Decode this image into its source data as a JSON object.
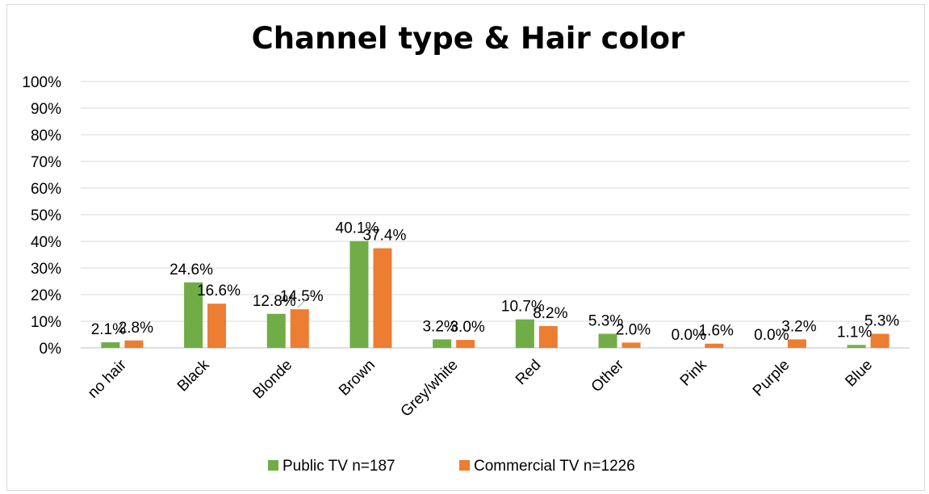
{
  "chart_data": {
    "type": "bar",
    "title": "Channel type & Hair color",
    "xlabel": "",
    "ylabel": "",
    "ylim": [
      0,
      100
    ],
    "yticks": [
      "0%",
      "10%",
      "20%",
      "30%",
      "40%",
      "50%",
      "60%",
      "70%",
      "80%",
      "90%",
      "100%"
    ],
    "categories": [
      "no hair",
      "Black",
      "Blonde",
      "Brown",
      "Grey/white",
      "Red",
      "Other",
      "Pink",
      "Purple",
      "Blue"
    ],
    "series": [
      {
        "name": "Public TV n=187",
        "color": "#70ad47",
        "values": [
          2.1,
          24.6,
          12.8,
          40.1,
          3.2,
          10.7,
          5.3,
          0.0,
          0.0,
          1.1
        ],
        "labels": [
          "2.1%",
          "24.6%",
          "12.8%",
          "40.1%",
          "3.2%",
          "10.7%",
          "5.3%",
          "0.0%",
          "0.0%",
          "1.1%"
        ]
      },
      {
        "name": "Commercial TV n=1226",
        "color": "#ed7d31",
        "values": [
          2.8,
          16.6,
          14.5,
          37.4,
          3.0,
          8.2,
          2.0,
          1.6,
          3.2,
          5.3
        ],
        "labels": [
          "2.8%",
          "16.6%",
          "14.5%",
          "37.4%",
          "3.0%",
          "8.2%",
          "2.0%",
          "1.6%",
          "3.2%",
          "5.3%"
        ]
      }
    ],
    "grid": true,
    "legend": "bottom"
  }
}
